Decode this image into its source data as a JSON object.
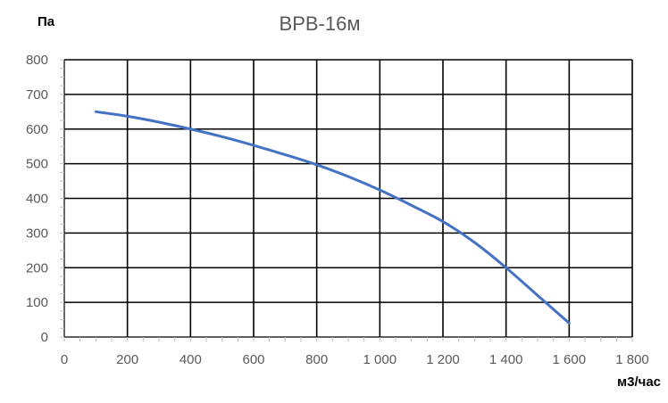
{
  "chart_data": {
    "type": "line",
    "title": "ВРВ-16м",
    "ylabel": "Па",
    "xlabel": "м3/час",
    "xlim": [
      0,
      1800
    ],
    "ylim": [
      0,
      800
    ],
    "x_ticks": [
      0,
      200,
      400,
      600,
      800,
      1000,
      1200,
      1400,
      1600,
      1800
    ],
    "x_tick_labels": [
      "0",
      "200",
      "400",
      "600",
      "800",
      "1 000",
      "1 200",
      "1 400",
      "1 600",
      "1 800"
    ],
    "y_ticks": [
      0,
      100,
      200,
      300,
      400,
      500,
      600,
      700,
      800
    ],
    "y_tick_labels": [
      "0",
      "100",
      "200",
      "300",
      "400",
      "500",
      "600",
      "700",
      "800"
    ],
    "grid": true,
    "series": [
      {
        "color": "#4472c4",
        "x": [
          100,
          200,
          300,
          400,
          500,
          600,
          700,
          800,
          900,
          1000,
          1100,
          1200,
          1300,
          1400,
          1500,
          1600
        ],
        "y": [
          650,
          637,
          620,
          600,
          578,
          553,
          526,
          497,
          463,
          424,
          380,
          333,
          273,
          200,
          120,
          40
        ]
      }
    ]
  }
}
